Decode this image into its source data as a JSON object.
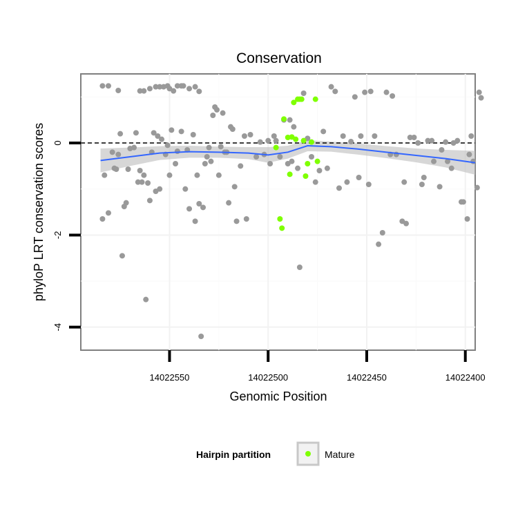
{
  "chart_data": {
    "type": "scatter",
    "title": "Conservation",
    "xlabel": "Genomic Position",
    "ylabel": "phyloP LRT conservation scores",
    "x_axis_reversed": true,
    "xlim": [
      14022595,
      14022395
    ],
    "ylim": [
      -4.5,
      1.5
    ],
    "x_ticks": [
      {
        "value": 14022550,
        "label": "14022550"
      },
      {
        "value": 14022500,
        "label": "14022500"
      },
      {
        "value": 14022450,
        "label": "14022450"
      },
      {
        "value": 14022400,
        "label": "14022400"
      }
    ],
    "y_ticks": [
      {
        "value": 0,
        "label": "0"
      },
      {
        "value": -2,
        "label": "-2"
      },
      {
        "value": -4,
        "label": "-4"
      }
    ],
    "grid": true,
    "reference_line": {
      "y": 0,
      "style": "dashed",
      "color": "#000000"
    },
    "colors": {
      "background_point": "#999999",
      "mature": "#7fff00",
      "smooth": "#3366ff",
      "ribbon": "#bdbdbd"
    },
    "legend": {
      "title": "Hairpin partition",
      "position": "bottom",
      "entries": [
        {
          "label": "Mature",
          "color": "#7fff00"
        }
      ]
    },
    "series": [
      {
        "group": "other",
        "points": [
          [
            14022584,
            1.24
          ],
          [
            14022581,
            1.24
          ],
          [
            14022576,
            1.14
          ],
          [
            14022565,
            1.13
          ],
          [
            14022563,
            1.13
          ],
          [
            14022560,
            1.18
          ],
          [
            14022557,
            1.22
          ],
          [
            14022555,
            1.22
          ],
          [
            14022553,
            1.22
          ],
          [
            14022551,
            1.24
          ],
          [
            14022550,
            1.18
          ],
          [
            14022548,
            1.13
          ],
          [
            14022546,
            1.24
          ],
          [
            14022544,
            1.24
          ],
          [
            14022543,
            1.24
          ],
          [
            14022540,
            1.18
          ],
          [
            14022537,
            1.22
          ],
          [
            14022535,
            1.12
          ],
          [
            14022584,
            -1.65
          ],
          [
            14022583,
            -0.7
          ],
          [
            14022581,
            -1.52
          ],
          [
            14022579,
            -0.2
          ],
          [
            14022578,
            -0.55
          ],
          [
            14022577,
            -0.57
          ],
          [
            14022576,
            -0.25
          ],
          [
            14022575,
            0.2
          ],
          [
            14022574,
            -2.45
          ],
          [
            14022573,
            -1.38
          ],
          [
            14022572,
            -1.3
          ],
          [
            14022571,
            -0.57
          ],
          [
            14022570,
            -0.12
          ],
          [
            14022568,
            -0.1
          ],
          [
            14022567,
            0.22
          ],
          [
            14022566,
            -0.85
          ],
          [
            14022565,
            -0.6
          ],
          [
            14022564,
            -0.85
          ],
          [
            14022563,
            -0.7
          ],
          [
            14022562,
            -3.4
          ],
          [
            14022561,
            -0.87
          ],
          [
            14022560,
            -1.25
          ],
          [
            14022559,
            -0.2
          ],
          [
            14022558,
            0.22
          ],
          [
            14022557,
            -1.05
          ],
          [
            14022556,
            0.15
          ],
          [
            14022555,
            -1.0
          ],
          [
            14022554,
            0.08
          ],
          [
            14022552,
            -0.25
          ],
          [
            14022551,
            -0.05
          ],
          [
            14022550,
            -0.7
          ],
          [
            14022549,
            0.28
          ],
          [
            14022547,
            -0.45
          ],
          [
            14022546,
            -0.18
          ],
          [
            14022544,
            0.25
          ],
          [
            14022542,
            -1.0
          ],
          [
            14022541,
            -0.15
          ],
          [
            14022540,
            -1.43
          ],
          [
            14022538,
            0.18
          ],
          [
            14022537,
            -1.7
          ],
          [
            14022536,
            -0.7
          ],
          [
            14022535,
            -1.32
          ],
          [
            14022534,
            -4.2
          ],
          [
            14022533,
            -1.4
          ],
          [
            14022532,
            -0.45
          ],
          [
            14022531,
            -0.3
          ],
          [
            14022530,
            -0.1
          ],
          [
            14022529,
            -0.4
          ],
          [
            14022528,
            0.6
          ],
          [
            14022527,
            0.78
          ],
          [
            14022526,
            0.72
          ],
          [
            14022525,
            -0.7
          ],
          [
            14022524,
            -0.08
          ],
          [
            14022523,
            0.65
          ],
          [
            14022522,
            -0.2
          ],
          [
            14022521,
            -0.2
          ],
          [
            14022520,
            -1.3
          ],
          [
            14022519,
            0.35
          ],
          [
            14022518,
            0.3
          ],
          [
            14022517,
            -0.95
          ],
          [
            14022516,
            -1.7
          ],
          [
            14022514,
            -0.5
          ],
          [
            14022512,
            0.15
          ],
          [
            14022511,
            -1.65
          ],
          [
            14022509,
            0.18
          ],
          [
            14022506,
            -0.3
          ],
          [
            14022504,
            0.02
          ],
          [
            14022502,
            -0.25
          ],
          [
            14022500,
            0.05
          ],
          [
            14022499,
            -0.45
          ],
          [
            14022497,
            0.15
          ],
          [
            14022496,
            0.05
          ],
          [
            14022494,
            -0.3
          ],
          [
            14022492,
            0.5
          ],
          [
            14022490,
            -0.45
          ],
          [
            14022489,
            0.5
          ],
          [
            14022488,
            -0.4
          ],
          [
            14022487,
            0.35
          ],
          [
            14022485,
            -0.55
          ],
          [
            14022484,
            -2.7
          ],
          [
            14022482,
            1.08
          ],
          [
            14022480,
            0.1
          ],
          [
            14022478,
            -0.3
          ],
          [
            14022476,
            -0.85
          ],
          [
            14022474,
            -0.6
          ],
          [
            14022472,
            0.25
          ],
          [
            14022470,
            -0.55
          ],
          [
            14022468,
            1.22
          ],
          [
            14022466,
            1.12
          ],
          [
            14022464,
            -0.98
          ],
          [
            14022462,
            0.15
          ],
          [
            14022460,
            -0.85
          ],
          [
            14022458,
            0.03
          ],
          [
            14022456,
            1.0
          ],
          [
            14022454,
            -0.75
          ],
          [
            14022453,
            0.15
          ],
          [
            14022451,
            1.1
          ],
          [
            14022449,
            -0.9
          ],
          [
            14022448,
            1.12
          ],
          [
            14022446,
            0.15
          ],
          [
            14022444,
            -2.2
          ],
          [
            14022442,
            -1.95
          ],
          [
            14022440,
            1.1
          ],
          [
            14022438,
            -0.25
          ],
          [
            14022437,
            1.02
          ],
          [
            14022435,
            -0.25
          ],
          [
            14022432,
            -1.7
          ],
          [
            14022431,
            -0.85
          ],
          [
            14022430,
            -1.75
          ],
          [
            14022428,
            0.12
          ],
          [
            14022426,
            0.12
          ],
          [
            14022424,
            0.0
          ],
          [
            14022422,
            -0.9
          ],
          [
            14022421,
            -0.75
          ],
          [
            14022419,
            0.05
          ],
          [
            14022417,
            0.05
          ],
          [
            14022416,
            -0.4
          ],
          [
            14022413,
            -0.95
          ],
          [
            14022412,
            -0.15
          ],
          [
            14022410,
            0.02
          ],
          [
            14022409,
            -0.4
          ],
          [
            14022407,
            -0.55
          ],
          [
            14022406,
            0.0
          ],
          [
            14022404,
            0.05
          ],
          [
            14022402,
            -1.28
          ],
          [
            14022401,
            -1.28
          ],
          [
            14022399,
            -1.65
          ],
          [
            14022398,
            -0.25
          ],
          [
            14022397,
            0.15
          ],
          [
            14022396,
            -0.4
          ],
          [
            14022394,
            -0.97
          ],
          [
            14022393,
            1.1
          ],
          [
            14022392,
            0.98
          ]
        ]
      },
      {
        "group": "Mature",
        "points": [
          [
            14022496,
            -0.1
          ],
          [
            14022494,
            -1.65
          ],
          [
            14022493,
            -1.85
          ],
          [
            14022492,
            0.52
          ],
          [
            14022490,
            0.12
          ],
          [
            14022489,
            -0.68
          ],
          [
            14022488,
            0.13
          ],
          [
            14022487,
            0.88
          ],
          [
            14022486,
            0.08
          ],
          [
            14022485,
            0.95
          ],
          [
            14022484,
            0.95
          ],
          [
            14022483,
            0.95
          ],
          [
            14022482,
            0.05
          ],
          [
            14022481,
            -0.72
          ],
          [
            14022480,
            -0.45
          ],
          [
            14022478,
            0.02
          ],
          [
            14022476,
            0.95
          ],
          [
            14022475,
            -0.4
          ]
        ]
      }
    ],
    "smooth_line": {
      "x": [
        14022585,
        14022570,
        14022555,
        14022540,
        14022525,
        14022510,
        14022500,
        14022490,
        14022480,
        14022468,
        14022455,
        14022440,
        14022425,
        14022410,
        14022395
      ],
      "y": [
        -0.38,
        -0.3,
        -0.22,
        -0.19,
        -0.2,
        -0.22,
        -0.26,
        -0.2,
        -0.06,
        -0.08,
        -0.13,
        -0.2,
        -0.27,
        -0.34,
        -0.43
      ],
      "ci_halfwidth": [
        0.26,
        0.2,
        0.15,
        0.13,
        0.12,
        0.13,
        0.17,
        0.14,
        0.12,
        0.11,
        0.12,
        0.13,
        0.15,
        0.19,
        0.26
      ]
    }
  }
}
